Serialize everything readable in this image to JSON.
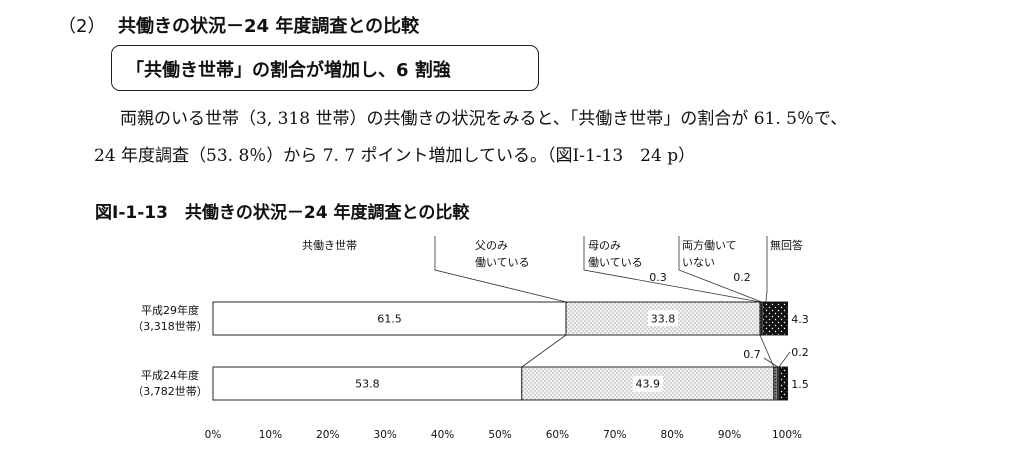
{
  "section": {
    "number": "（2）",
    "title": "共働きの状況－24 年度調査との比較"
  },
  "callout": {
    "text": "「共働き世帯」の割合が増加し、6 割強"
  },
  "paragraph": {
    "line1": "両親のいる世帯（3, 318 世帯）の共働きの状況をみると、「共働き世帯」の割合が 61. 5％で、",
    "line2": "24 年度調査（53. 8％）から 7. 7 ポイント増加している。（図Ⅰ-1-13　24 p）"
  },
  "figure": {
    "title": "図Ⅰ-1-13　共働きの状況－24 年度調査との比較"
  },
  "chart_data": {
    "type": "bar",
    "orientation": "horizontal",
    "stacked": true,
    "xlim": [
      0,
      100
    ],
    "x_ticks": [
      "0%",
      "10%",
      "20%",
      "30%",
      "40%",
      "50%",
      "60%",
      "70%",
      "80%",
      "90%",
      "100%"
    ],
    "categories": [
      {
        "line1": "平成29年度",
        "line2": "（3,318世帯）"
      },
      {
        "line1": "平成24年度",
        "line2": "（3,782世帯）"
      }
    ],
    "series": [
      {
        "name": "共働き世帯",
        "pattern": "white",
        "values": [
          61.5,
          53.8
        ]
      },
      {
        "name": "父のみ働いている",
        "pattern": "dots-light",
        "values": [
          33.8,
          43.9
        ]
      },
      {
        "name": "母のみ働いている",
        "pattern": "dots-dark",
        "values": [
          0.3,
          0.7
        ]
      },
      {
        "name": "両方働いていない",
        "pattern": "white",
        "values": [
          0.2,
          0.2
        ]
      },
      {
        "name": "無回答",
        "pattern": "black-dots",
        "values": [
          4.3,
          1.5
        ]
      }
    ],
    "legend_labels": [
      {
        "line1": "共働き世帯",
        "line2": ""
      },
      {
        "line1": "父のみ",
        "line2": "働いている"
      },
      {
        "line1": "母のみ",
        "line2": "働いている"
      },
      {
        "line1": "両方働いて",
        "line2": "いない"
      },
      {
        "line1": "無回答",
        "line2": ""
      }
    ],
    "value_labels": {
      "row0": [
        "61.5",
        "33.8",
        "0.3",
        "0.2",
        "4.3"
      ],
      "row1": [
        "53.8",
        "43.9",
        "0.7",
        "0.2",
        "1.5"
      ]
    }
  }
}
